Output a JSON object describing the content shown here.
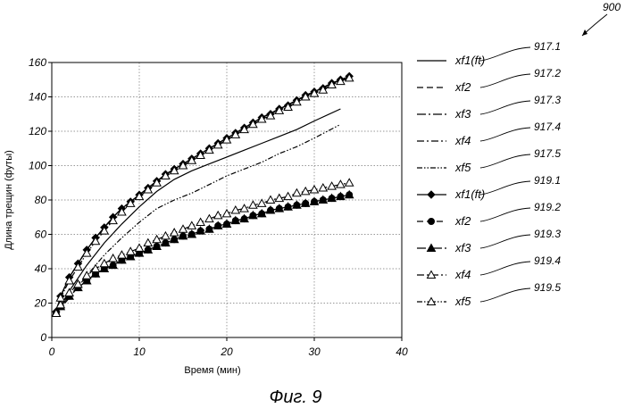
{
  "figure": {
    "number": "900",
    "caption": "Фиг. 9"
  },
  "chart_data": {
    "type": "line",
    "xlabel": "Время (мин)",
    "ylabel": "Длина трещин (футы)",
    "xlim": [
      0,
      40
    ],
    "ylim": [
      0,
      160
    ],
    "xticks": [
      "0",
      "10",
      "20",
      "30",
      "40"
    ],
    "yticks": [
      "0",
      "20",
      "40",
      "60",
      "80",
      "100",
      "120",
      "140",
      "160"
    ],
    "grid": true,
    "legend_position": "right",
    "series": [
      {
        "name": "xf1(ft)",
        "ref": "917.1",
        "style": "solid",
        "marker": "none",
        "x": [
          0.5,
          2,
          4,
          6,
          8,
          10,
          12,
          14,
          16,
          18,
          20,
          22,
          24,
          26,
          28,
          30,
          33
        ],
        "y": [
          14,
          27,
          42,
          55,
          66,
          76,
          85,
          92,
          97,
          101,
          105,
          109,
          113,
          117,
          121,
          126,
          133
        ]
      },
      {
        "name": "xf2",
        "ref": "917.2",
        "style": "dashed",
        "marker": "none",
        "x": [
          0.5,
          1,
          2,
          3,
          4,
          5,
          6,
          7,
          8,
          9,
          10,
          12,
          14,
          16,
          18,
          20,
          22,
          24,
          26,
          28,
          30,
          32,
          34
        ],
        "y": [
          15,
          24,
          35,
          43,
          51,
          58,
          64,
          70,
          75,
          79,
          83,
          91,
          98,
          104,
          110,
          116,
          122,
          128,
          133,
          138,
          143,
          148,
          151
        ]
      },
      {
        "name": "xf3",
        "ref": "917.3",
        "style": "longdash",
        "marker": "none",
        "x": [
          0.5,
          1,
          2,
          3,
          4,
          5,
          6,
          7,
          8,
          9,
          10,
          12,
          14,
          16,
          18,
          20,
          22,
          24,
          26,
          28,
          30,
          32,
          34
        ],
        "y": [
          15,
          24,
          35,
          43,
          51,
          58,
          64,
          70,
          75,
          79,
          83,
          91,
          98,
          104,
          110,
          116,
          122,
          128,
          133,
          138,
          143,
          148,
          151
        ]
      },
      {
        "name": "xf4",
        "ref": "917.4",
        "style": "dashdot",
        "marker": "none",
        "x": [
          0.5,
          1,
          2,
          3,
          4,
          5,
          6,
          7,
          8,
          9,
          10,
          12,
          14,
          16,
          18,
          20,
          22,
          24,
          26,
          28,
          30,
          32,
          34
        ],
        "y": [
          15,
          24,
          35,
          43,
          51,
          58,
          64,
          70,
          75,
          79,
          83,
          91,
          98,
          104,
          110,
          116,
          122,
          128,
          133,
          138,
          143,
          148,
          151
        ]
      },
      {
        "name": "xf5",
        "ref": "917.5",
        "style": "dashdotdot",
        "marker": "none",
        "x": [
          0.5,
          2,
          4,
          6,
          8,
          10,
          12,
          14,
          16,
          18,
          20,
          22,
          24,
          26,
          28,
          30,
          33
        ],
        "y": [
          14,
          23,
          36,
          48,
          58,
          67,
          75,
          80,
          84,
          89,
          94,
          98,
          102,
          107,
          111,
          116,
          124
        ]
      },
      {
        "name": "xf1(ft)",
        "ref": "919.1",
        "style": "solid",
        "marker": "diamond-filled",
        "x": [
          0.5,
          1,
          2,
          3,
          4,
          5,
          6,
          7,
          8,
          9,
          10,
          11,
          12,
          13,
          14,
          15,
          16,
          17,
          18,
          19,
          20,
          21,
          22,
          23,
          24,
          25,
          26,
          27,
          28,
          29,
          30,
          31,
          32,
          33,
          34
        ],
        "y": [
          15,
          24,
          35,
          43,
          51,
          58,
          64,
          70,
          75,
          79,
          83,
          87,
          91,
          95,
          98,
          101,
          104,
          107,
          110,
          113,
          116,
          119,
          122,
          125,
          128,
          130,
          133,
          135,
          138,
          141,
          143,
          145,
          148,
          150,
          152
        ]
      },
      {
        "name": "xf2",
        "ref": "919.2",
        "style": "dashed",
        "marker": "circle-filled",
        "x": [
          0.5,
          1,
          2,
          3,
          4,
          5,
          6,
          7,
          8,
          9,
          10,
          11,
          12,
          13,
          14,
          15,
          16,
          17,
          18,
          19,
          20,
          21,
          22,
          23,
          24,
          25,
          26,
          27,
          28,
          29,
          30,
          31,
          32,
          33,
          34
        ],
        "y": [
          14,
          18,
          24,
          29,
          33,
          37,
          40,
          42,
          45,
          47,
          49,
          51,
          53,
          55,
          57,
          59,
          60,
          62,
          63,
          65,
          66,
          68,
          69,
          71,
          72,
          74,
          75,
          76,
          77,
          78,
          79,
          80,
          81,
          82,
          83
        ]
      },
      {
        "name": "xf3",
        "ref": "919.3",
        "style": "longdash",
        "marker": "triangle-filled",
        "x": [
          0.5,
          1,
          2,
          3,
          4,
          5,
          6,
          7,
          8,
          9,
          10,
          11,
          12,
          13,
          14,
          15,
          16,
          17,
          18,
          19,
          20,
          21,
          22,
          23,
          24,
          25,
          26,
          27,
          28,
          29,
          30,
          31,
          32,
          33,
          34
        ],
        "y": [
          14,
          18,
          24,
          29,
          33,
          37,
          40,
          42,
          45,
          47,
          49,
          51,
          53,
          55,
          57,
          59,
          60,
          62,
          63,
          65,
          66,
          68,
          69,
          71,
          72,
          74,
          75,
          76,
          77,
          78,
          79,
          80,
          81,
          82,
          83
        ]
      },
      {
        "name": "xf4",
        "ref": "919.4",
        "style": "dashdot",
        "marker": "triangle-open",
        "x": [
          0.5,
          1,
          2,
          3,
          4,
          5,
          6,
          7,
          8,
          9,
          10,
          11,
          12,
          13,
          14,
          15,
          16,
          17,
          18,
          19,
          20,
          21,
          22,
          23,
          24,
          25,
          26,
          27,
          28,
          29,
          30,
          31,
          32,
          33,
          34
        ],
        "y": [
          14,
          19,
          26,
          31,
          36,
          40,
          43,
          46,
          48,
          50,
          52,
          55,
          57,
          59,
          61,
          63,
          65,
          67,
          69,
          71,
          72,
          74,
          75,
          77,
          78,
          80,
          81,
          82,
          84,
          85,
          86,
          87,
          88,
          89,
          90
        ]
      },
      {
        "name": "xf5",
        "ref": "919.5",
        "style": "dashdotdot",
        "marker": "triangle-open",
        "x": [
          0.5,
          1,
          2,
          3,
          4,
          5,
          6,
          7,
          8,
          9,
          10,
          11,
          12,
          13,
          14,
          15,
          16,
          17,
          18,
          19,
          20,
          21,
          22,
          23,
          24,
          25,
          26,
          27,
          28,
          29,
          30,
          31,
          32,
          33,
          34
        ],
        "y": [
          14,
          23,
          33,
          41,
          49,
          56,
          62,
          68,
          73,
          78,
          82,
          86,
          90,
          94,
          97,
          100,
          103,
          106,
          109,
          112,
          115,
          118,
          121,
          124,
          127,
          129,
          132,
          134,
          137,
          140,
          142,
          144,
          147,
          149,
          151
        ]
      }
    ]
  }
}
